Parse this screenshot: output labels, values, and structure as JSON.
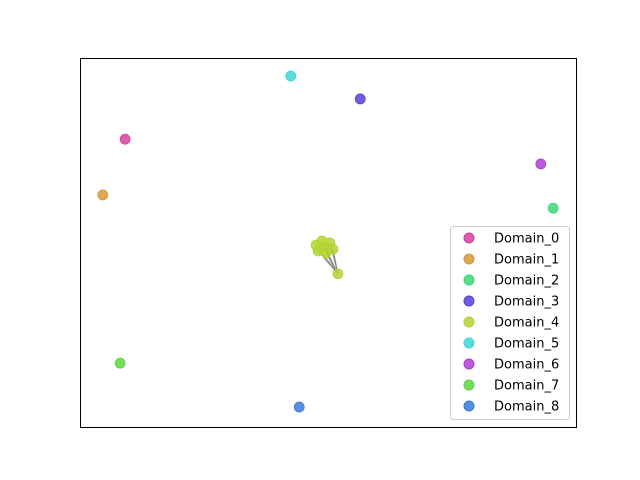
{
  "chart_data": {
    "type": "scatter",
    "xlim": [
      0,
      1
    ],
    "ylim": [
      0,
      1
    ],
    "series": [
      {
        "name": "Domain_0",
        "color": "#d6409f",
        "x": [
          0.091
        ],
        "values": [
          0.78
        ]
      },
      {
        "name": "Domain_1",
        "color": "#d6983a",
        "x": [
          0.046
        ],
        "values": [
          0.629
        ]
      },
      {
        "name": "Domain_2",
        "color": "#3dd67a",
        "x": [
          0.954
        ],
        "values": [
          0.593
        ]
      },
      {
        "name": "Domain_3",
        "color": "#5a3ed6",
        "x": [
          0.565
        ],
        "values": [
          0.889
        ]
      },
      {
        "name": "Domain_4",
        "color": "#b3d330",
        "x": [
          0.52,
          0.476,
          0.488,
          0.504,
          0.51,
          0.496,
          0.48,
          0.492
        ],
        "values": [
          0.415,
          0.493,
          0.504,
          0.499,
          0.482,
          0.472,
          0.477,
          0.488
        ]
      },
      {
        "name": "Domain_5",
        "color": "#3dd6d6",
        "x": [
          0.425
        ],
        "values": [
          0.951
        ]
      },
      {
        "name": "Domain_6",
        "color": "#b03dd6",
        "x": [
          0.929
        ],
        "values": [
          0.713
        ]
      },
      {
        "name": "Domain_7",
        "color": "#5cd63d",
        "x": [
          0.081
        ],
        "values": [
          0.173
        ]
      },
      {
        "name": "Domain_8",
        "color": "#3d7ad6",
        "x": [
          0.442
        ],
        "values": [
          0.054
        ]
      }
    ],
    "legend": "lower right"
  }
}
